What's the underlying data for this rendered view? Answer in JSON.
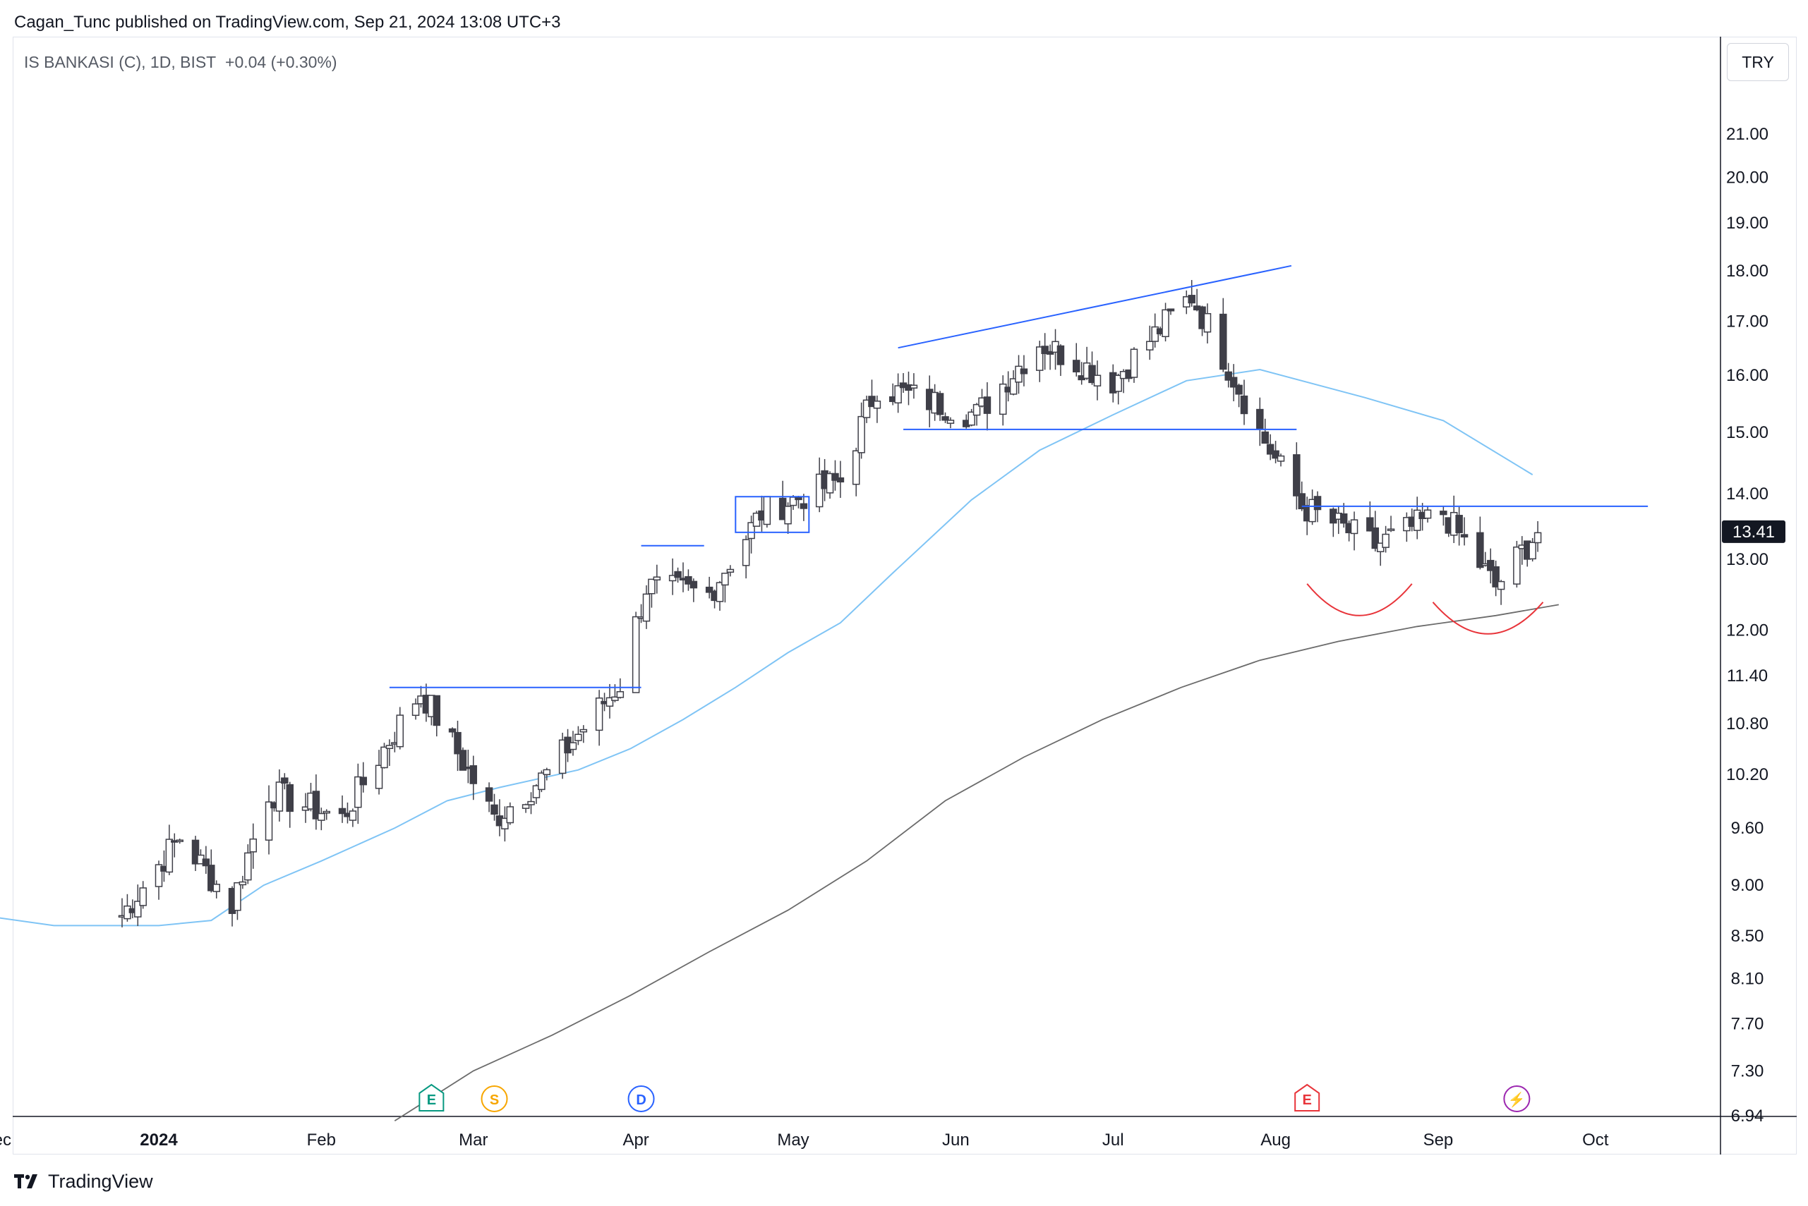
{
  "header": {
    "published": "Cagan_Tunc published on TradingView.com, Sep 21, 2024 13:08 UTC+3",
    "symbol": "IS BANKASI (C), 1D, BIST",
    "change": "+0.04 (+0.30%)",
    "currency": "TRY"
  },
  "footer": {
    "brand": "TradingView"
  },
  "colors": {
    "up": "#ffffff",
    "down": "#3f3f48",
    "ma50": "#7fc4f5",
    "ma200": "#6b6b6b",
    "drawing": "#2962ff",
    "arc": "#e8343a"
  },
  "chart_data": {
    "type": "candlestick",
    "title": "IS BANKASI (C), 1D, BIST",
    "xlabel": "",
    "ylabel": "TRY",
    "scale": "log",
    "ylim": [
      6.9,
      22.3
    ],
    "price_ticks": [
      "21.00",
      "20.00",
      "19.00",
      "18.00",
      "17.00",
      "16.00",
      "15.00",
      "14.00",
      "13.00",
      "12.00",
      "11.40",
      "10.80",
      "10.20",
      "9.60",
      "9.00",
      "8.50",
      "8.10",
      "7.70",
      "7.30",
      "6.94"
    ],
    "last_price": "13.41",
    "x_labels": [
      {
        "label": "Dec",
        "day": -31
      },
      {
        "label": "2024",
        "day": 0
      },
      {
        "label": "Feb",
        "day": 31
      },
      {
        "label": "Mar",
        "day": 60
      },
      {
        "label": "Apr",
        "day": 91
      },
      {
        "label": "May",
        "day": 121
      },
      {
        "label": "Jun",
        "day": 152
      },
      {
        "label": "Jul",
        "day": 182
      },
      {
        "label": "Aug",
        "day": 213
      },
      {
        "label": "Sep",
        "day": 244
      },
      {
        "label": "Oct",
        "day": 274
      }
    ],
    "ohlc_key_closes": [
      {
        "date": "2023-12-25",
        "close": 8.7
      },
      {
        "date": "2024-01-05",
        "close": 9.5
      },
      {
        "date": "2024-01-15",
        "close": 8.8
      },
      {
        "date": "2024-01-22",
        "close": 10.0
      },
      {
        "date": "2024-02-05",
        "close": 9.7
      },
      {
        "date": "2024-02-20",
        "close": 11.2
      },
      {
        "date": "2024-03-05",
        "close": 9.7
      },
      {
        "date": "2024-03-15",
        "close": 10.2
      },
      {
        "date": "2024-03-29",
        "close": 11.3
      },
      {
        "date": "2024-04-03",
        "close": 12.6
      },
      {
        "date": "2024-04-15",
        "close": 12.5
      },
      {
        "date": "2024-04-25",
        "close": 13.7
      },
      {
        "date": "2024-05-10",
        "close": 14.2
      },
      {
        "date": "2024-05-17",
        "close": 15.8
      },
      {
        "date": "2024-06-05",
        "close": 15.3
      },
      {
        "date": "2024-06-17",
        "close": 16.6
      },
      {
        "date": "2024-07-01",
        "close": 15.9
      },
      {
        "date": "2024-07-16",
        "close": 17.5
      },
      {
        "date": "2024-07-29",
        "close": 15.0
      },
      {
        "date": "2024-08-06",
        "close": 13.8
      },
      {
        "date": "2024-08-20",
        "close": 13.2
      },
      {
        "date": "2024-09-02",
        "close": 13.7
      },
      {
        "date": "2024-09-12",
        "close": 12.6
      },
      {
        "date": "2024-09-20",
        "close": 13.41
      }
    ],
    "series": [
      {
        "name": "MA 50",
        "color": "#7fc4f5",
        "points": [
          [
            -34,
            8.7
          ],
          [
            -20,
            8.6
          ],
          [
            0,
            8.6
          ],
          [
            10,
            8.65
          ],
          [
            20,
            9.0
          ],
          [
            31,
            9.25
          ],
          [
            45,
            9.6
          ],
          [
            55,
            9.9
          ],
          [
            65,
            10.05
          ],
          [
            80,
            10.25
          ],
          [
            90,
            10.5
          ],
          [
            100,
            10.85
          ],
          [
            110,
            11.25
          ],
          [
            120,
            11.7
          ],
          [
            130,
            12.1
          ],
          [
            140,
            12.8
          ],
          [
            155,
            13.9
          ],
          [
            168,
            14.7
          ],
          [
            182,
            15.3
          ],
          [
            196,
            15.9
          ],
          [
            210,
            16.1
          ],
          [
            230,
            15.6
          ],
          [
            245,
            15.2
          ],
          [
            262,
            14.3
          ]
        ]
      },
      {
        "name": "MA 200",
        "color": "#6b6b6b",
        "points": [
          [
            45,
            6.9
          ],
          [
            60,
            7.3
          ],
          [
            75,
            7.6
          ],
          [
            90,
            7.95
          ],
          [
            105,
            8.35
          ],
          [
            120,
            8.75
          ],
          [
            135,
            9.25
          ],
          [
            150,
            9.9
          ],
          [
            165,
            10.4
          ],
          [
            180,
            10.85
          ],
          [
            195,
            11.25
          ],
          [
            210,
            11.6
          ],
          [
            225,
            11.85
          ],
          [
            240,
            12.05
          ],
          [
            255,
            12.2
          ],
          [
            267,
            12.35
          ]
        ]
      }
    ],
    "drawings": [
      {
        "name": "resistance-feb",
        "x": [
          44,
          92
        ],
        "y": [
          11.25,
          11.25
        ]
      },
      {
        "name": "resistance-apr",
        "x": [
          92,
          104
        ],
        "y": [
          13.2,
          13.2
        ]
      },
      {
        "name": "box-apr",
        "x": [
          110,
          124
        ],
        "y": [
          13.4,
          13.95
        ]
      },
      {
        "name": "wedge-top",
        "x": [
          141,
          216
        ],
        "y": [
          16.5,
          18.1
        ]
      },
      {
        "name": "support-jun",
        "x": [
          142,
          217
        ],
        "y": [
          15.05,
          15.05
        ]
      },
      {
        "name": "neckline-aug",
        "x": [
          218,
          284
        ],
        "y": [
          13.8,
          13.8
        ]
      }
    ],
    "arcs": [
      {
        "name": "arc-left",
        "x0": 219,
        "x1": 239,
        "ybottom": 12.2
      },
      {
        "name": "arc-right",
        "x0": 243,
        "x1": 264,
        "ybottom": 11.95
      }
    ],
    "events": [
      {
        "type": "E",
        "label": "E",
        "day": 52,
        "color": "#089981"
      },
      {
        "type": "S",
        "label": "S",
        "day": 64,
        "color": "#f7a600"
      },
      {
        "type": "D",
        "label": "D",
        "day": 92,
        "color": "#2962ff"
      },
      {
        "type": "E",
        "label": "E",
        "day": 219,
        "color": "#e8343a"
      },
      {
        "type": "flash",
        "label": "⚡",
        "day": 259,
        "color": "#9c27b0"
      }
    ]
  }
}
